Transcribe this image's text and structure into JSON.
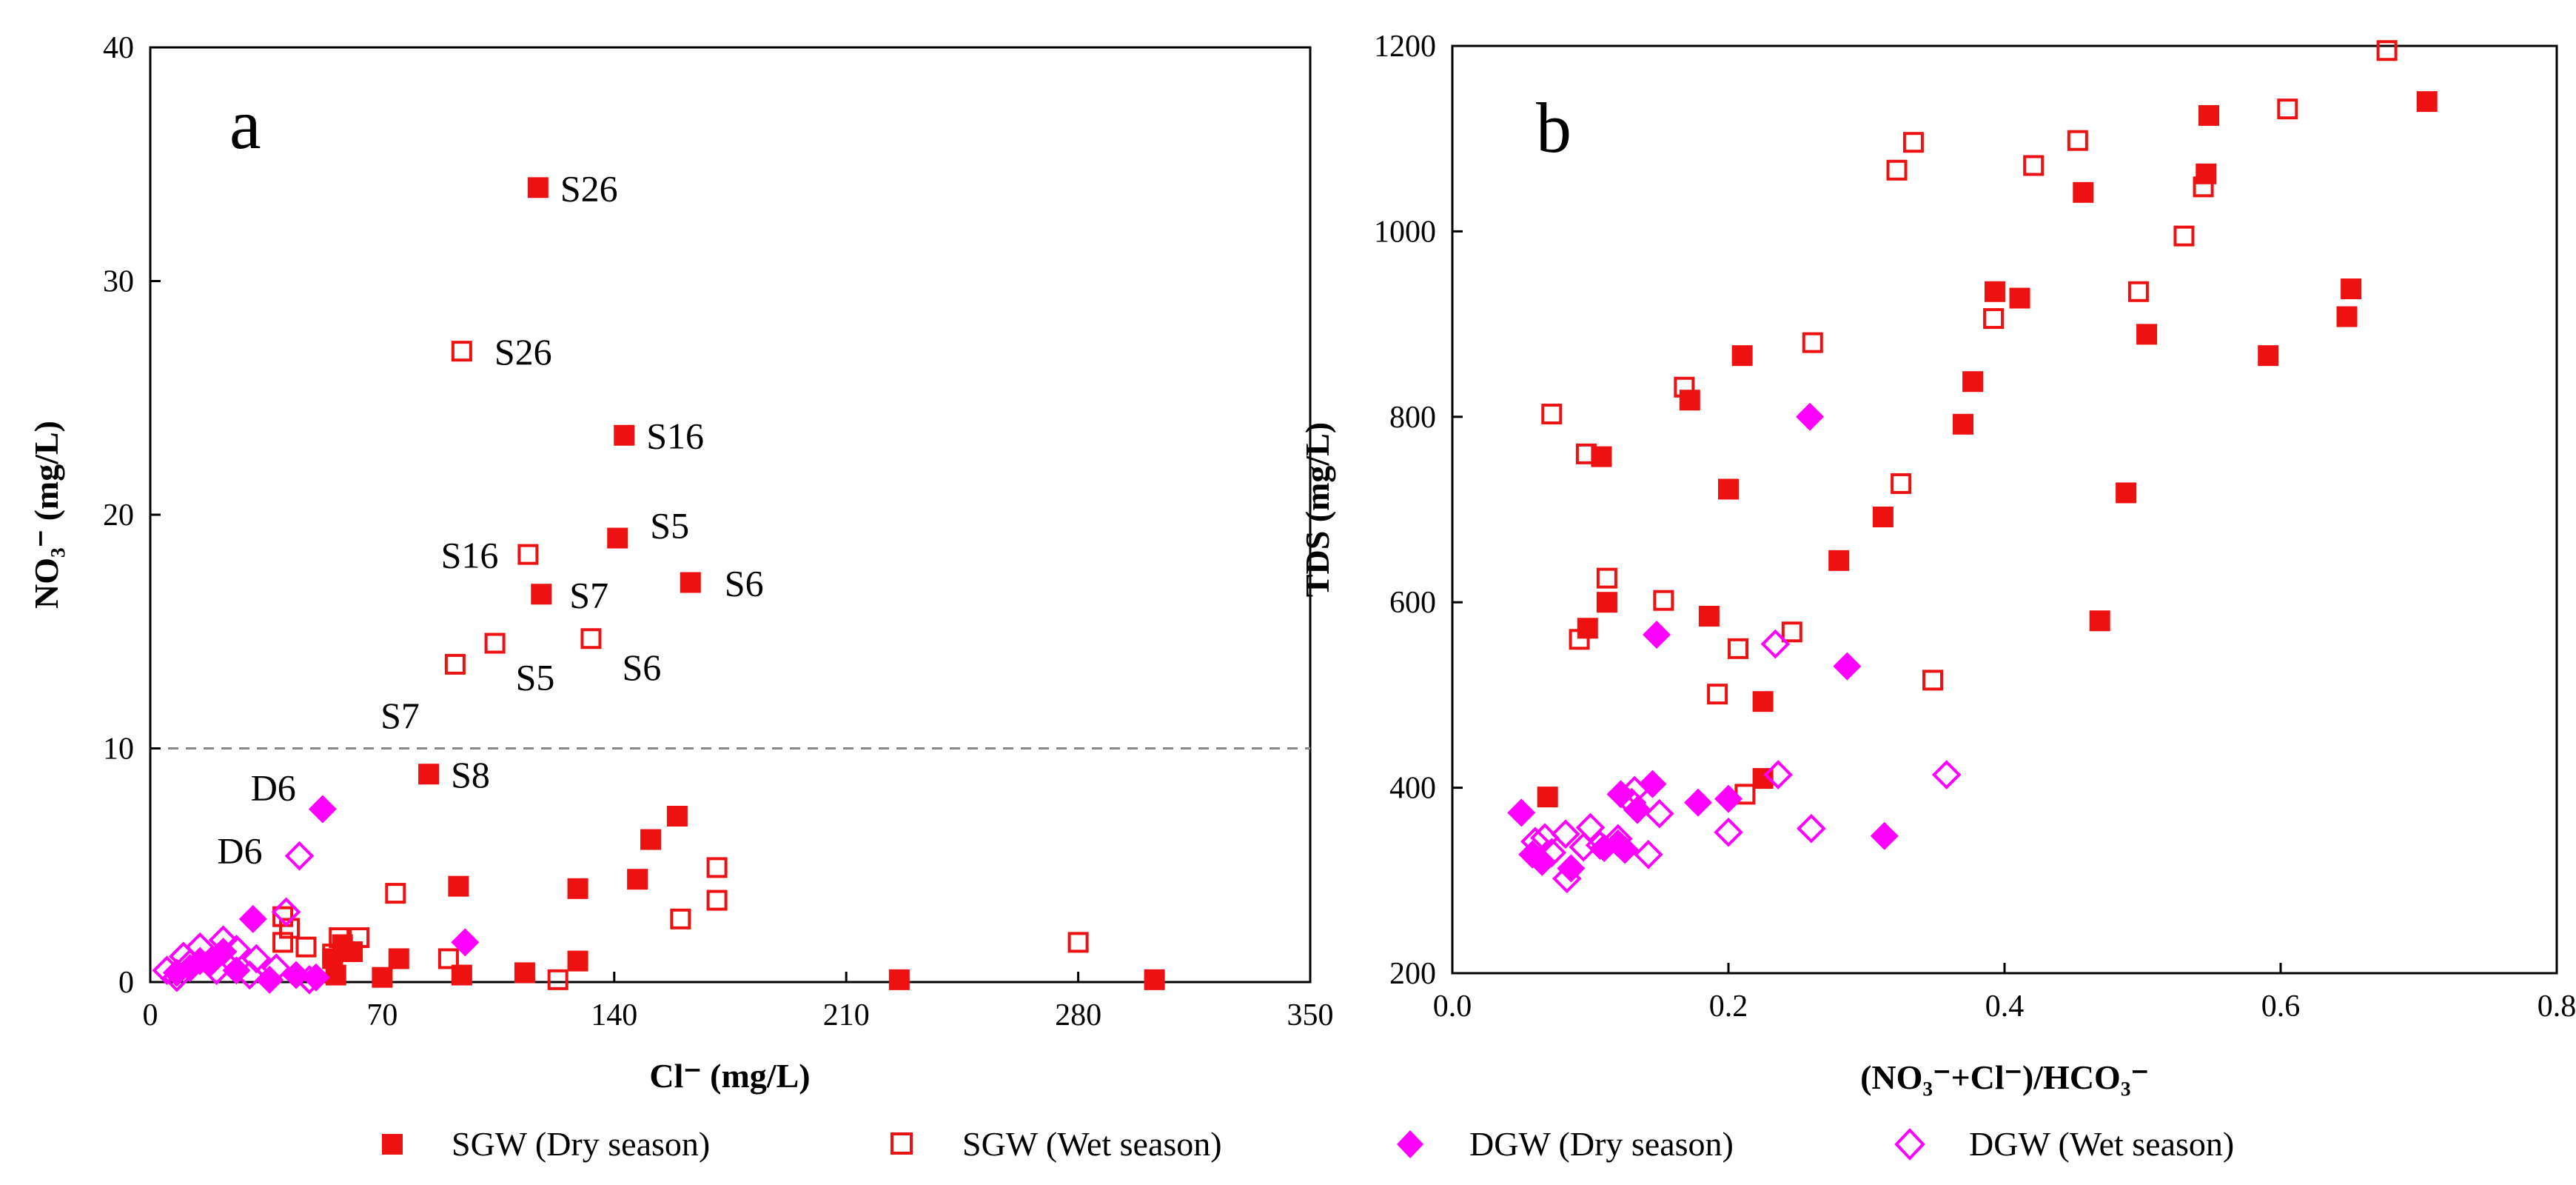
{
  "colors": {
    "sgw": "#ee1111",
    "dgw": "#ff00ff",
    "axis": "#000000",
    "guide": "#888888"
  },
  "legend": [
    {
      "label": "SGW (Dry season)",
      "series": "sgw_dry",
      "marker": "square-filled"
    },
    {
      "label": "SGW (Wet season)",
      "series": "sgw_wet",
      "marker": "square-open"
    },
    {
      "label": "DGW (Dry season)",
      "series": "dgw_dry",
      "marker": "diamond-filled"
    },
    {
      "label": "DGW (Wet season)",
      "series": "dgw_wet",
      "marker": "diamond-open"
    }
  ],
  "chart_data": [
    {
      "type": "scatter",
      "panel": "a",
      "xlabel": "Cl⁻ (mg/L)",
      "ylabel": "NO₃⁻ (mg/L)",
      "xlim": [
        0,
        350
      ],
      "ylim": [
        0,
        40
      ],
      "xticks": [
        0,
        70,
        140,
        210,
        280,
        350
      ],
      "yticks": [
        0,
        10,
        20,
        30,
        40
      ],
      "reference_line": {
        "axis": "y",
        "value": 10,
        "style": "dashed"
      },
      "series": [
        {
          "key": "sgw_dry",
          "name": "SGW (Dry season)",
          "marker": "square-filled",
          "points": [
            [
              117,
              34
            ],
            [
              143,
              23.4
            ],
            [
              141,
              19
            ],
            [
              118,
              16.6
            ],
            [
              163,
              17.1
            ],
            [
              84,
              8.9
            ],
            [
              159,
              7.1
            ],
            [
              151,
              6.1
            ],
            [
              147,
              4.4
            ],
            [
              93,
              4.1
            ],
            [
              129,
              4
            ],
            [
              129,
              0.9
            ],
            [
              113,
              0.4
            ],
            [
              75,
              1
            ],
            [
              61,
              1.3
            ],
            [
              58,
              1.6
            ],
            [
              55,
              1
            ],
            [
              56,
              0.3
            ],
            [
              70,
              0.2
            ],
            [
              94,
              0.3
            ],
            [
              226,
              0.1
            ],
            [
              303,
              0.1
            ]
          ]
        },
        {
          "key": "sgw_wet",
          "name": "SGW (Wet season)",
          "marker": "square-open",
          "points": [
            [
              94,
              27
            ],
            [
              114,
              18.3
            ],
            [
              104,
              14.5
            ],
            [
              133,
              14.7
            ],
            [
              92,
              13.6
            ],
            [
              171,
              4.9
            ],
            [
              74,
              3.8
            ],
            [
              171,
              3.5
            ],
            [
              160,
              2.7
            ],
            [
              280,
              1.7
            ],
            [
              90,
              1
            ],
            [
              57,
              1.9
            ],
            [
              63,
              1.9
            ],
            [
              47,
              1.5
            ],
            [
              42,
              2.3
            ],
            [
              40,
              2.8
            ],
            [
              40,
              1.7
            ],
            [
              55,
              1.2
            ],
            [
              123,
              0.1
            ]
          ]
        },
        {
          "key": "dgw_dry",
          "name": "DGW (Dry season)",
          "marker": "diamond-filled",
          "points": [
            [
              52,
              7.4
            ],
            [
              31,
              2.7
            ],
            [
              95,
              1.7
            ],
            [
              22,
              1.3
            ],
            [
              15,
              0.9
            ],
            [
              8,
              0.4
            ],
            [
              12,
              0.6
            ],
            [
              44,
              0.3
            ],
            [
              36,
              0.1
            ],
            [
              50,
              0.2
            ],
            [
              26,
              0.5
            ],
            [
              18,
              0.8
            ]
          ]
        },
        {
          "key": "dgw_wet",
          "name": "DGW (Wet season)",
          "marker": "diamond-open",
          "points": [
            [
              45,
              5.4
            ],
            [
              41,
              3
            ],
            [
              15,
              1.5
            ],
            [
              10,
              1.1
            ],
            [
              26,
              1.4
            ],
            [
              32,
              1
            ],
            [
              20,
              0.5
            ],
            [
              8,
              0.2
            ],
            [
              12,
              0.8
            ],
            [
              30,
              0.3
            ],
            [
              38,
              0.6
            ],
            [
              48,
              0.1
            ],
            [
              22,
              1.8
            ],
            [
              5,
              0.5
            ]
          ]
        }
      ],
      "annotations": [
        {
          "text": "S26",
          "x": 117,
          "y": 34
        },
        {
          "text": "S26",
          "x": 94,
          "y": 27
        },
        {
          "text": "S16",
          "x": 143,
          "y": 23.4
        },
        {
          "text": "S16",
          "x": 114,
          "y": 18.3
        },
        {
          "text": "S5",
          "x": 141,
          "y": 19
        },
        {
          "text": "S5",
          "x": 104,
          "y": 14.5
        },
        {
          "text": "S6",
          "x": 163,
          "y": 17.1
        },
        {
          "text": "S6",
          "x": 133,
          "y": 14.7
        },
        {
          "text": "S7",
          "x": 118,
          "y": 16.6
        },
        {
          "text": "S7",
          "x": 92,
          "y": 13.6
        },
        {
          "text": "S8",
          "x": 84,
          "y": 8.9
        },
        {
          "text": "D6",
          "x": 52,
          "y": 7.4
        },
        {
          "text": "D6",
          "x": 45,
          "y": 5.4
        }
      ]
    },
    {
      "type": "scatter",
      "panel": "b",
      "xlabel": "(NO₃⁻+Cl⁻)/HCO₃⁻",
      "ylabel": "TDS (mg/L)",
      "xlim": [
        0,
        0.8
      ],
      "ylim": [
        200,
        1200
      ],
      "xticks": [
        0.0,
        0.2,
        0.4,
        0.6,
        0.8
      ],
      "yticks": [
        200,
        400,
        600,
        800,
        1000,
        1200
      ],
      "series": [
        {
          "key": "sgw_dry",
          "name": "SGW (Dry season)",
          "marker": "square-filled",
          "points": [
            [
              0.706,
              1140
            ],
            [
              0.548,
              1125
            ],
            [
              0.546,
              1062
            ],
            [
              0.457,
              1042
            ],
            [
              0.651,
              938
            ],
            [
              0.393,
              935
            ],
            [
              0.411,
              928
            ],
            [
              0.648,
              908
            ],
            [
              0.503,
              889
            ],
            [
              0.591,
              866
            ],
            [
              0.21,
              866
            ],
            [
              0.172,
              818
            ],
            [
              0.377,
              838
            ],
            [
              0.108,
              757
            ],
            [
              0.37,
              792
            ],
            [
              0.2,
              722
            ],
            [
              0.488,
              718
            ],
            [
              0.312,
              692
            ],
            [
              0.28,
              645
            ],
            [
              0.112,
              600
            ],
            [
              0.186,
              585
            ],
            [
              0.098,
              572
            ],
            [
              0.469,
              580
            ],
            [
              0.225,
              493
            ],
            [
              0.225,
              410
            ],
            [
              0.069,
              390
            ]
          ]
        },
        {
          "key": "sgw_wet",
          "name": "SGW (Wet season)",
          "marker": "square-open",
          "points": [
            [
              0.677,
              1195
            ],
            [
              0.605,
              1132
            ],
            [
              0.334,
              1096
            ],
            [
              0.453,
              1098
            ],
            [
              0.322,
              1066
            ],
            [
              0.421,
              1071
            ],
            [
              0.544,
              1048
            ],
            [
              0.53,
              995
            ],
            [
              0.497,
              935
            ],
            [
              0.392,
              906
            ],
            [
              0.261,
              880
            ],
            [
              0.168,
              832
            ],
            [
              0.072,
              803
            ],
            [
              0.097,
              760
            ],
            [
              0.325,
              728
            ],
            [
              0.112,
              626
            ],
            [
              0.153,
              602
            ],
            [
              0.092,
              560
            ],
            [
              0.246,
              568
            ],
            [
              0.207,
              550
            ],
            [
              0.348,
              516
            ],
            [
              0.192,
              501
            ],
            [
              0.212,
              393
            ]
          ]
        },
        {
          "key": "dgw_dry",
          "name": "DGW (Dry season)",
          "marker": "diamond-filled",
          "points": [
            [
              0.259,
              800
            ],
            [
              0.148,
              565
            ],
            [
              0.286,
              531
            ],
            [
              0.145,
              404
            ],
            [
              0.122,
              393
            ],
            [
              0.134,
              376
            ],
            [
              0.05,
              373
            ],
            [
              0.2,
              388
            ],
            [
              0.178,
              384
            ],
            [
              0.12,
              340
            ],
            [
              0.125,
              333
            ],
            [
              0.086,
              313
            ],
            [
              0.313,
              348
            ],
            [
              0.065,
              320
            ],
            [
              0.11,
              335
            ],
            [
              0.058,
              328
            ]
          ]
        },
        {
          "key": "dgw_wet",
          "name": "DGW (Wet season)",
          "marker": "diamond-open",
          "points": [
            [
              0.234,
              555
            ],
            [
              0.236,
              414
            ],
            [
              0.358,
              414
            ],
            [
              0.132,
              397
            ],
            [
              0.15,
              372
            ],
            [
              0.13,
              384
            ],
            [
              0.1,
              357
            ],
            [
              0.082,
              350
            ],
            [
              0.067,
              346
            ],
            [
              0.06,
              342
            ],
            [
              0.2,
              352
            ],
            [
              0.26,
              356
            ],
            [
              0.142,
              328
            ],
            [
              0.083,
              302
            ],
            [
              0.095,
              336
            ],
            [
              0.072,
              330
            ],
            [
              0.12,
              345
            ],
            [
              0.107,
              338
            ]
          ]
        }
      ]
    }
  ]
}
